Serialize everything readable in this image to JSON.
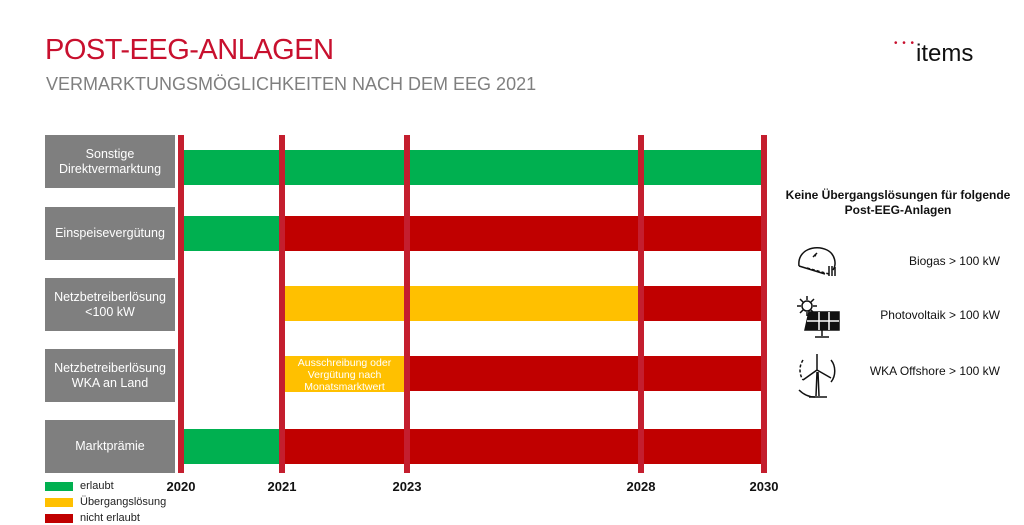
{
  "header": {
    "title": "POST-EEG-ANLAGEN",
    "subtitle": "VERMARKTUNGSMÖGLICHKEITEN NACH DEM EEG 2021",
    "logo": "items"
  },
  "colors": {
    "erlaubt": "#00b050",
    "uebergang": "#ffc000",
    "nicht_erlaubt": "#c00000",
    "line": "#c41e2e",
    "label_bg": "#7f7f7f"
  },
  "years": [
    "2020",
    "2021",
    "2023",
    "2028",
    "2030"
  ],
  "rows": [
    {
      "label": "Sonstige Direktvermarktung",
      "segments": [
        {
          "from": "2020",
          "to": "2030",
          "status": "erlaubt"
        }
      ]
    },
    {
      "label": "Einspeisevergütung",
      "segments": [
        {
          "from": "2020",
          "to": "2021",
          "status": "erlaubt"
        },
        {
          "from": "2021",
          "to": "2030",
          "status": "nicht_erlaubt"
        }
      ]
    },
    {
      "label": "Netzbetreiberlösung <100 kW",
      "segments": [
        {
          "from": "2021",
          "to": "2028",
          "status": "uebergang"
        },
        {
          "from": "2028",
          "to": "2030",
          "status": "nicht_erlaubt"
        }
      ]
    },
    {
      "label": "Netzbetreiberlösung WKA an Land",
      "segments": [
        {
          "from": "2021",
          "to": "2023",
          "status": "uebergang",
          "text": "Ausschreibung oder Vergütung nach Monatsmarktwert"
        },
        {
          "from": "2023",
          "to": "2030",
          "status": "nicht_erlaubt"
        }
      ]
    },
    {
      "label": "Marktprämie",
      "segments": [
        {
          "from": "2020",
          "to": "2021",
          "status": "erlaubt"
        },
        {
          "from": "2021",
          "to": "2030",
          "status": "nicht_erlaubt"
        }
      ]
    }
  ],
  "legend": [
    {
      "status": "erlaubt",
      "label": "erlaubt"
    },
    {
      "status": "uebergang",
      "label": "Übergangslösung"
    },
    {
      "status": "nicht_erlaubt",
      "label": "nicht erlaubt"
    }
  ],
  "side": {
    "title": "Keine Übergangslösungen für folgende Post-EEG-Anlagen",
    "items": [
      {
        "icon": "biogas-icon",
        "label": "Biogas > 100 kW"
      },
      {
        "icon": "solar-panel-icon",
        "label": "Photovoltaik > 100 kW"
      },
      {
        "icon": "wind-turbine-icon",
        "label": "WKA Offshore > 100 kW"
      }
    ]
  }
}
